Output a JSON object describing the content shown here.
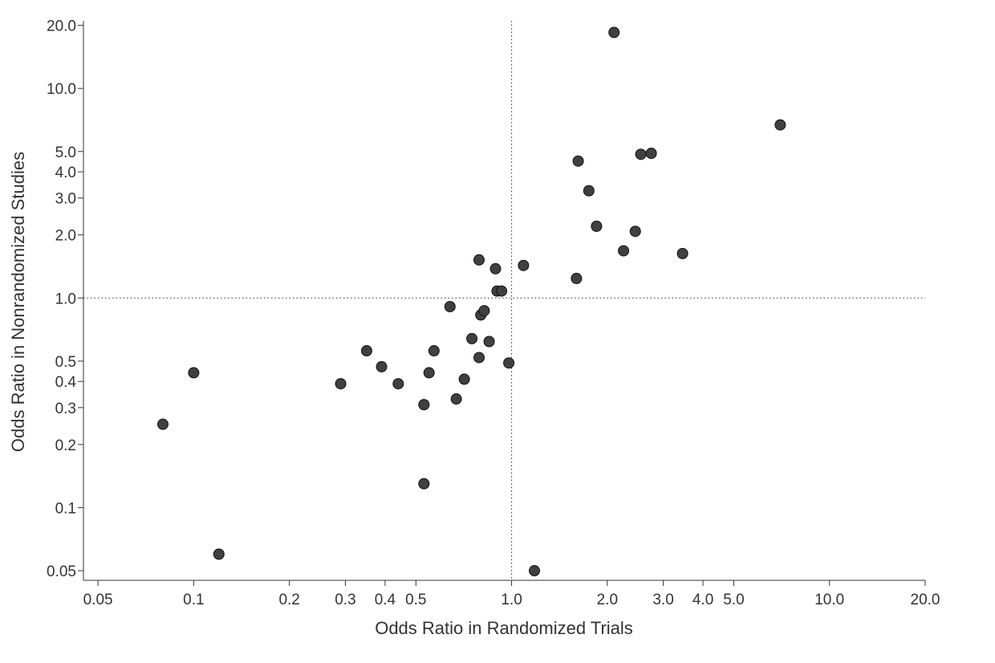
{
  "chart_data": {
    "type": "scatter",
    "title": "",
    "xlabel": "Odds Ratio in Randomized Trials",
    "ylabel": "Odds Ratio in Nonrandomized Studies",
    "xscale": "log",
    "yscale": "log",
    "xlim": [
      0.045,
      20.0
    ],
    "ylim": [
      0.045,
      21.0
    ],
    "grid": false,
    "legend": "none",
    "reference_lines": {
      "x": 1.0,
      "y": 1.0,
      "style": "dotted"
    },
    "colors": {
      "point_fill": "#404040",
      "point_stroke": "#111111",
      "axis": "#333333",
      "text": "#333333"
    },
    "xticks": [
      {
        "value": 0.05,
        "label": "0.05"
      },
      {
        "value": 0.1,
        "label": "0.1"
      },
      {
        "value": 0.2,
        "label": "0.2"
      },
      {
        "value": 0.3,
        "label": "0.3"
      },
      {
        "value": 0.4,
        "label": "0.4"
      },
      {
        "value": 0.5,
        "label": "0.5"
      },
      {
        "value": 1.0,
        "label": "1.0"
      },
      {
        "value": 2.0,
        "label": "2.0"
      },
      {
        "value": 3.0,
        "label": "3.0"
      },
      {
        "value": 4.0,
        "label": "4.0"
      },
      {
        "value": 5.0,
        "label": "5.0"
      },
      {
        "value": 10.0,
        "label": "10.0"
      },
      {
        "value": 20.0,
        "label": "20.0"
      }
    ],
    "yticks": [
      {
        "value": 0.05,
        "label": "0.05"
      },
      {
        "value": 0.1,
        "label": "0.1"
      },
      {
        "value": 0.2,
        "label": "0.2"
      },
      {
        "value": 0.3,
        "label": "0.3"
      },
      {
        "value": 0.4,
        "label": "0.4"
      },
      {
        "value": 0.5,
        "label": "0.5"
      },
      {
        "value": 1.0,
        "label": "1.0"
      },
      {
        "value": 2.0,
        "label": "2.0"
      },
      {
        "value": 3.0,
        "label": "3.0"
      },
      {
        "value": 4.0,
        "label": "4.0"
      },
      {
        "value": 5.0,
        "label": "5.0"
      },
      {
        "value": 10.0,
        "label": "10.0"
      },
      {
        "value": 20.0,
        "label": "20.0"
      }
    ],
    "points": [
      {
        "x": 0.08,
        "y": 0.25
      },
      {
        "x": 0.1,
        "y": 0.44
      },
      {
        "x": 0.12,
        "y": 0.06
      },
      {
        "x": 0.29,
        "y": 0.39
      },
      {
        "x": 0.35,
        "y": 0.56
      },
      {
        "x": 0.39,
        "y": 0.47
      },
      {
        "x": 0.44,
        "y": 0.39
      },
      {
        "x": 0.53,
        "y": 0.31
      },
      {
        "x": 0.53,
        "y": 0.13
      },
      {
        "x": 0.55,
        "y": 0.44
      },
      {
        "x": 0.57,
        "y": 0.56
      },
      {
        "x": 0.64,
        "y": 0.91
      },
      {
        "x": 0.67,
        "y": 0.33
      },
      {
        "x": 0.71,
        "y": 0.41
      },
      {
        "x": 0.75,
        "y": 0.64
      },
      {
        "x": 0.79,
        "y": 0.52
      },
      {
        "x": 0.79,
        "y": 1.52
      },
      {
        "x": 0.8,
        "y": 0.83
      },
      {
        "x": 0.82,
        "y": 0.87
      },
      {
        "x": 0.85,
        "y": 0.62
      },
      {
        "x": 0.89,
        "y": 1.38
      },
      {
        "x": 0.9,
        "y": 1.08
      },
      {
        "x": 0.93,
        "y": 1.08
      },
      {
        "x": 0.98,
        "y": 0.49
      },
      {
        "x": 1.09,
        "y": 1.43
      },
      {
        "x": 1.18,
        "y": 0.05
      },
      {
        "x": 1.6,
        "y": 1.24
      },
      {
        "x": 1.62,
        "y": 4.5
      },
      {
        "x": 1.75,
        "y": 3.25
      },
      {
        "x": 1.85,
        "y": 2.2
      },
      {
        "x": 2.1,
        "y": 18.5
      },
      {
        "x": 2.25,
        "y": 1.68
      },
      {
        "x": 2.45,
        "y": 2.08
      },
      {
        "x": 2.55,
        "y": 4.85
      },
      {
        "x": 2.75,
        "y": 4.9
      },
      {
        "x": 3.45,
        "y": 1.63
      },
      {
        "x": 7.0,
        "y": 6.7
      }
    ]
  }
}
